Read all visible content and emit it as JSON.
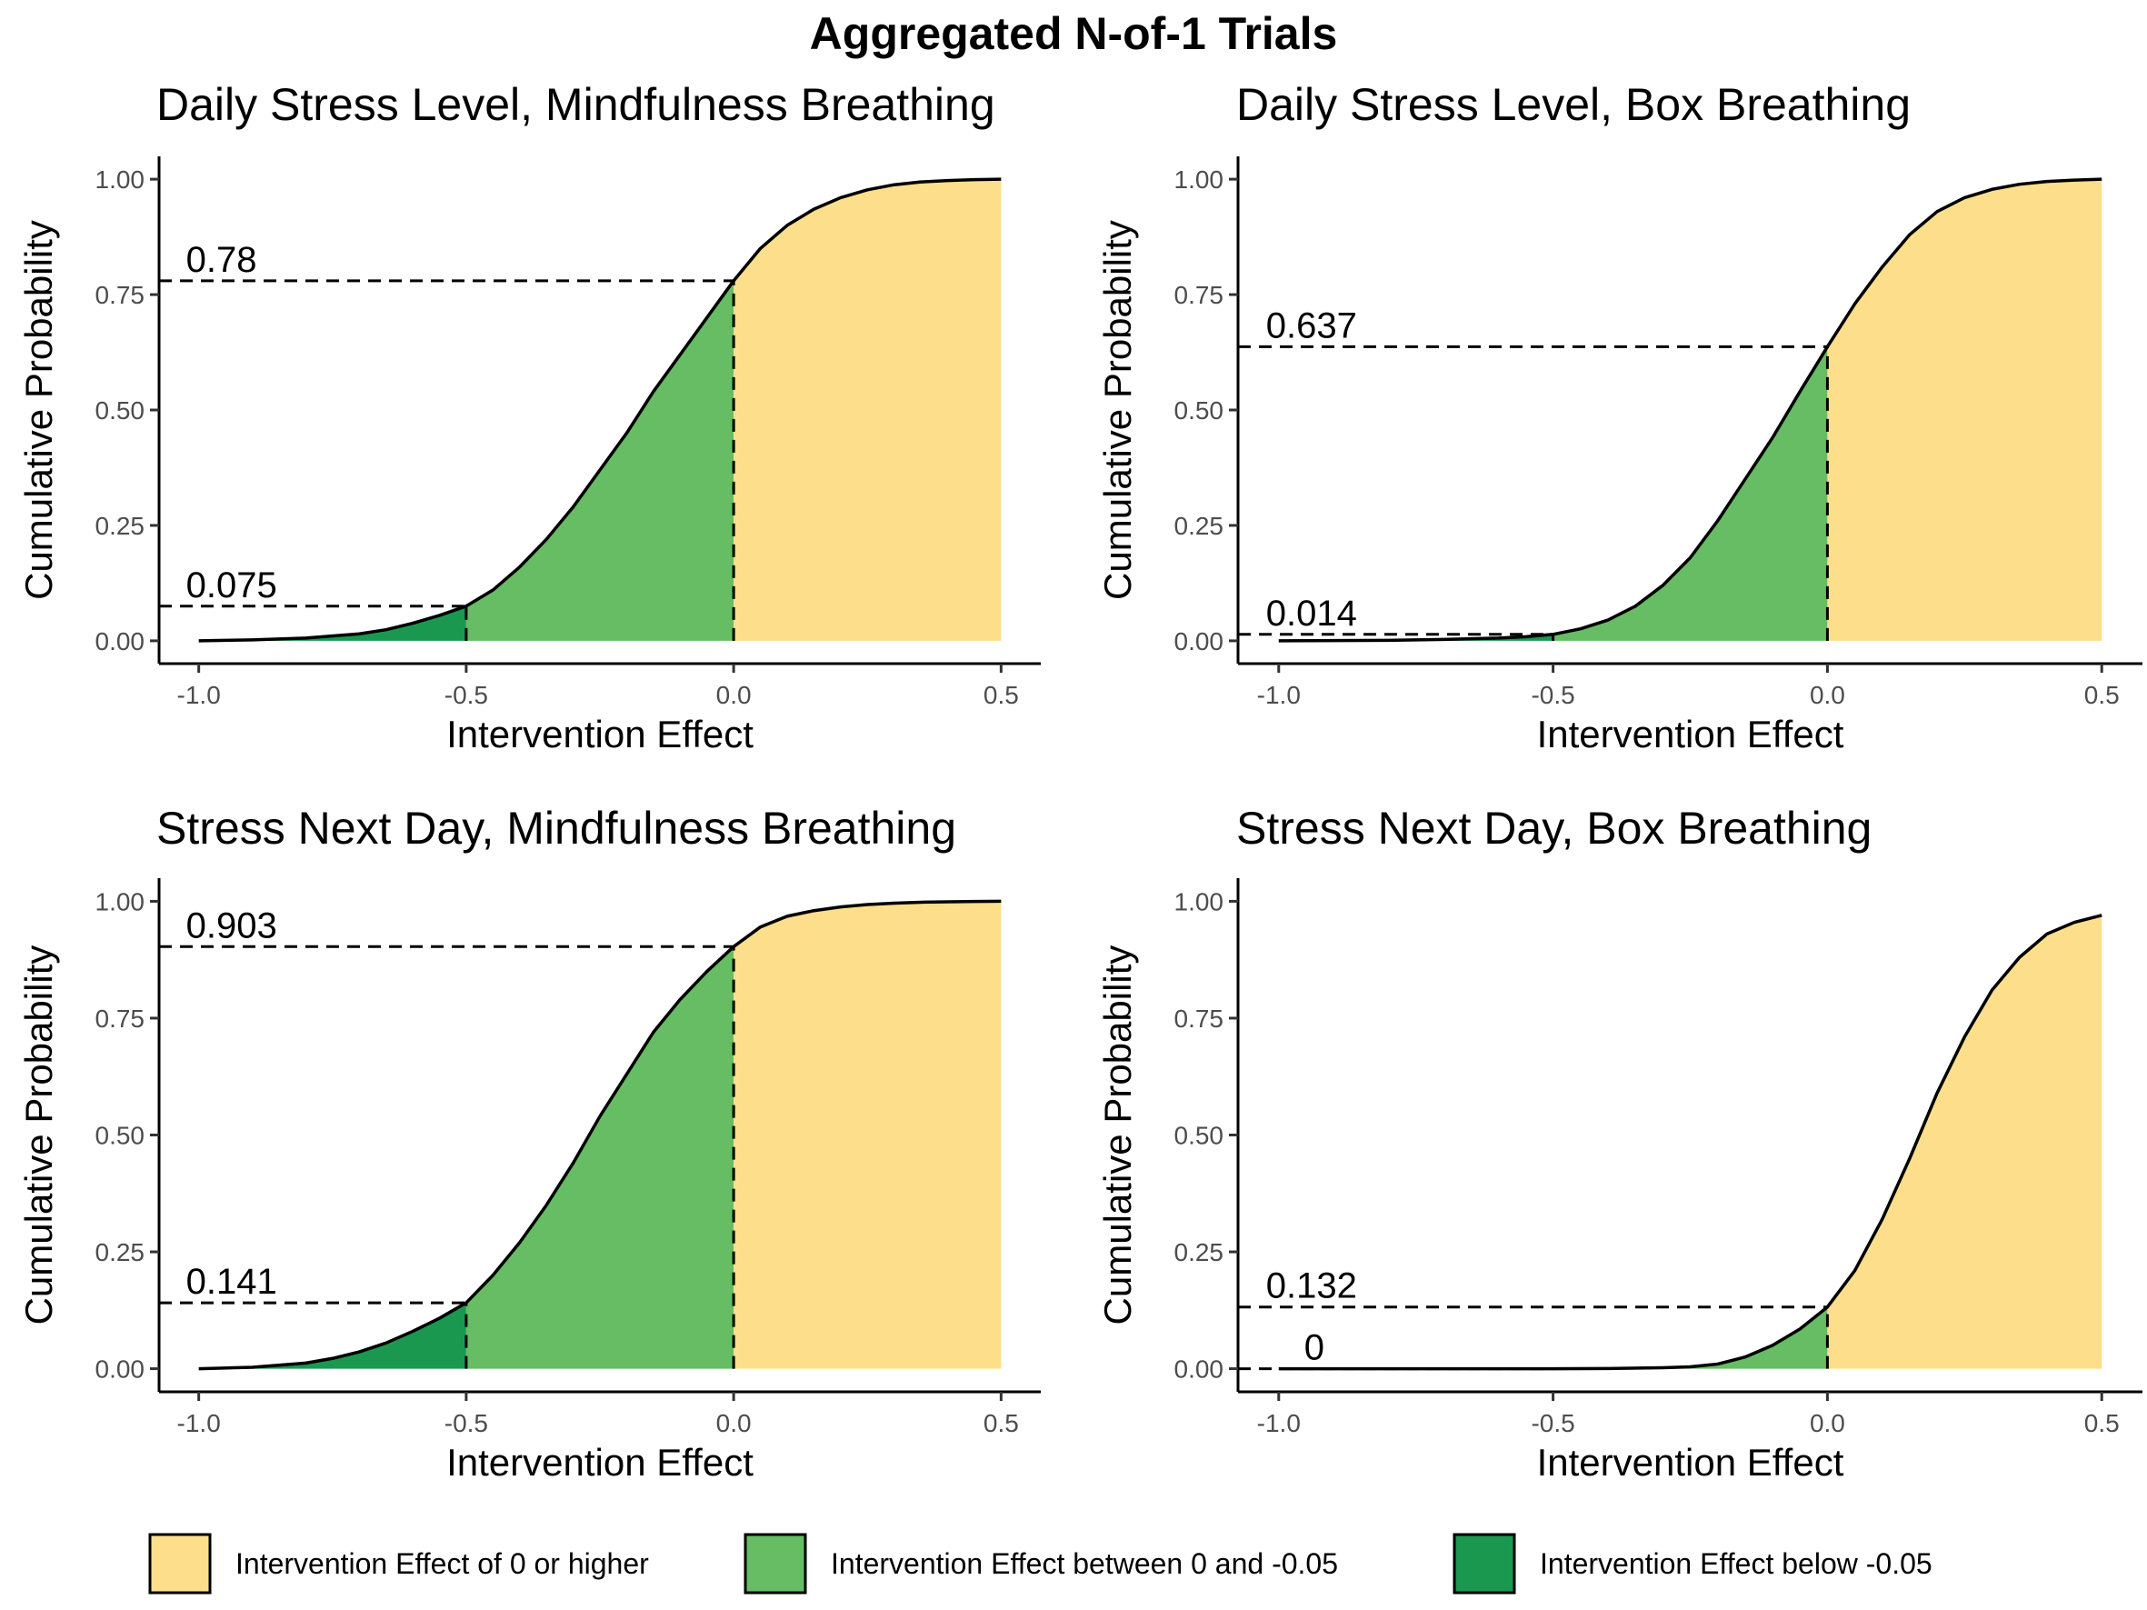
{
  "title": "Aggregated N-of-1 Trials",
  "colors": {
    "high": "#FDDF8B",
    "mid": "#66BD63",
    "low": "#1A9850",
    "line": "#000000"
  },
  "legend": {
    "placement": "bottom",
    "items": [
      {
        "label": "Intervention Effect of 0 or higher",
        "color": "#FDDF8B"
      },
      {
        "label": "Intervention Effect between 0 and -0.05",
        "color": "#66BD63"
      },
      {
        "label": "Intervention Effect below -0.05",
        "color": "#1A9850"
      }
    ]
  },
  "chart_data": [
    {
      "type": "area",
      "title": "Daily Stress Level, Mindfulness Breathing",
      "xlabel": "Intervention Effect",
      "ylabel": "Cumulative Probability",
      "xlim": [
        -1.0,
        0.5
      ],
      "ylim": [
        0,
        1
      ],
      "xticks": [
        "-1.0",
        "-0.5",
        "0.0",
        "0.5"
      ],
      "yticks": [
        "0.00",
        "0.25",
        "0.50",
        "0.75",
        "1.00"
      ],
      "grid": false,
      "thresholds": [
        -0.5,
        0.0
      ],
      "annotations": [
        {
          "label": "0.78",
          "y": 0.78
        },
        {
          "label": "0.075",
          "y": 0.075
        }
      ],
      "x": [
        -1.0,
        -0.9,
        -0.8,
        -0.7,
        -0.65,
        -0.6,
        -0.55,
        -0.5,
        -0.45,
        -0.4,
        -0.35,
        -0.3,
        -0.25,
        -0.2,
        -0.15,
        -0.1,
        -0.05,
        0.0,
        0.05,
        0.1,
        0.15,
        0.2,
        0.25,
        0.3,
        0.35,
        0.4,
        0.45,
        0.5
      ],
      "y": [
        0.0,
        0.002,
        0.006,
        0.015,
        0.024,
        0.038,
        0.055,
        0.075,
        0.11,
        0.16,
        0.22,
        0.29,
        0.37,
        0.45,
        0.54,
        0.62,
        0.7,
        0.78,
        0.85,
        0.9,
        0.935,
        0.96,
        0.977,
        0.988,
        0.994,
        0.997,
        0.999,
        1.0
      ]
    },
    {
      "type": "area",
      "title": "Daily Stress Level, Box Breathing",
      "xlabel": "Intervention Effect",
      "ylabel": "Cumulative Probability",
      "xlim": [
        -1.0,
        0.5
      ],
      "ylim": [
        0,
        1
      ],
      "xticks": [
        "-1.0",
        "-0.5",
        "0.0",
        "0.5"
      ],
      "yticks": [
        "0.00",
        "0.25",
        "0.50",
        "0.75",
        "1.00"
      ],
      "grid": false,
      "thresholds": [
        -0.5,
        0.0
      ],
      "annotations": [
        {
          "label": "0.637",
          "y": 0.637
        },
        {
          "label": "0.014",
          "y": 0.014
        }
      ],
      "x": [
        -1.0,
        -0.9,
        -0.8,
        -0.7,
        -0.6,
        -0.55,
        -0.5,
        -0.45,
        -0.4,
        -0.35,
        -0.3,
        -0.25,
        -0.2,
        -0.15,
        -0.1,
        -0.05,
        0.0,
        0.05,
        0.1,
        0.15,
        0.2,
        0.25,
        0.3,
        0.35,
        0.4,
        0.45,
        0.5
      ],
      "y": [
        0.0,
        0.0005,
        0.001,
        0.003,
        0.006,
        0.009,
        0.014,
        0.026,
        0.045,
        0.075,
        0.12,
        0.18,
        0.26,
        0.35,
        0.44,
        0.54,
        0.637,
        0.73,
        0.81,
        0.88,
        0.93,
        0.96,
        0.978,
        0.989,
        0.995,
        0.998,
        1.0
      ]
    },
    {
      "type": "area",
      "title": "Stress Next Day, Mindfulness Breathing",
      "xlabel": "Intervention Effect",
      "ylabel": "Cumulative Probability",
      "xlim": [
        -1.0,
        0.5
      ],
      "ylim": [
        0,
        1
      ],
      "xticks": [
        "-1.0",
        "-0.5",
        "0.0",
        "0.5"
      ],
      "yticks": [
        "0.00",
        "0.25",
        "0.50",
        "0.75",
        "1.00"
      ],
      "grid": false,
      "thresholds": [
        -0.5,
        0.0
      ],
      "annotations": [
        {
          "label": "0.903",
          "y": 0.903
        },
        {
          "label": "0.141",
          "y": 0.141
        }
      ],
      "x": [
        -1.0,
        -0.9,
        -0.8,
        -0.75,
        -0.7,
        -0.65,
        -0.6,
        -0.55,
        -0.5,
        -0.45,
        -0.4,
        -0.35,
        -0.3,
        -0.25,
        -0.2,
        -0.15,
        -0.1,
        -0.05,
        0.0,
        0.05,
        0.1,
        0.15,
        0.2,
        0.25,
        0.3,
        0.35,
        0.4,
        0.45,
        0.5
      ],
      "y": [
        0.0,
        0.003,
        0.012,
        0.022,
        0.036,
        0.055,
        0.08,
        0.108,
        0.141,
        0.2,
        0.27,
        0.35,
        0.44,
        0.54,
        0.63,
        0.72,
        0.79,
        0.85,
        0.903,
        0.945,
        0.968,
        0.98,
        0.988,
        0.993,
        0.996,
        0.998,
        0.999,
        0.9995,
        1.0
      ]
    },
    {
      "type": "area",
      "title": "Stress Next Day, Box Breathing",
      "xlabel": "Intervention Effect",
      "ylabel": "Cumulative Probability",
      "xlim": [
        -1.0,
        0.5
      ],
      "ylim": [
        0,
        1
      ],
      "xticks": [
        "-1.0",
        "-0.5",
        "0.0",
        "0.5"
      ],
      "yticks": [
        "0.00",
        "0.25",
        "0.50",
        "0.75",
        "1.00"
      ],
      "grid": false,
      "thresholds": [
        -0.5,
        0.0
      ],
      "annotations": [
        {
          "label": "0.132",
          "y": 0.132
        },
        {
          "label": "0",
          "y": 0.0
        }
      ],
      "x": [
        -1.0,
        -0.9,
        -0.8,
        -0.7,
        -0.6,
        -0.5,
        -0.4,
        -0.3,
        -0.25,
        -0.2,
        -0.15,
        -0.1,
        -0.05,
        0.0,
        0.05,
        0.1,
        0.15,
        0.2,
        0.25,
        0.3,
        0.35,
        0.4,
        0.45,
        0.5
      ],
      "y": [
        0.0,
        0.0,
        0.0,
        0.0,
        0.0,
        0.0,
        0.0005,
        0.002,
        0.004,
        0.01,
        0.025,
        0.05,
        0.085,
        0.132,
        0.21,
        0.32,
        0.45,
        0.59,
        0.71,
        0.81,
        0.88,
        0.93,
        0.955,
        0.97
      ]
    }
  ]
}
